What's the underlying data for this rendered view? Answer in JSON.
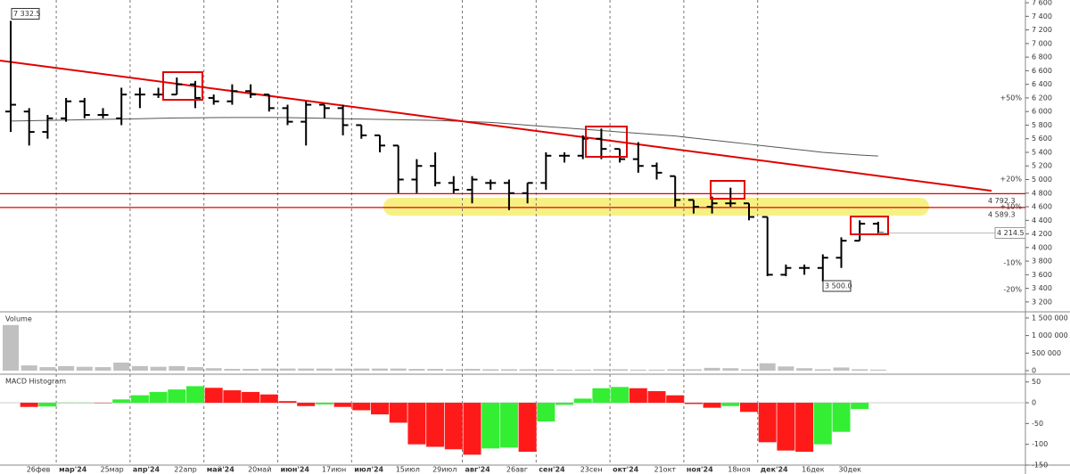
{
  "chart_data": [
    {
      "type": "ohlc",
      "categories": [
        null,
        "26фев",
        null,
        "мар'24",
        null,
        "25мар",
        null,
        "апр'24",
        null,
        "22апр",
        null,
        "май'24",
        null,
        "20май",
        null,
        "июн'24",
        null,
        "17июн",
        null,
        "июл'24",
        null,
        "15июл",
        null,
        "29июл",
        null,
        "авг'24",
        null,
        "26авг",
        null,
        "сен'24",
        null,
        "23сен",
        null,
        "окт'24",
        null,
        "21окт",
        null,
        "ноя'24",
        null,
        "18ноя",
        null,
        "дек'24",
        null,
        "16дек",
        null,
        "30дек",
        null,
        null
      ],
      "open": [
        6000,
        6000,
        5700,
        5900,
        6150,
        5950,
        5900,
        6250,
        6250,
        6250,
        6400,
        6200,
        6150,
        6300,
        6250,
        6050,
        5850,
        6100,
        6050,
        5800,
        5650,
        5500,
        5000,
        5200,
        4950,
        4850,
        4950,
        4950,
        4800,
        4950,
        5350,
        5350,
        5600,
        5450,
        5300,
        5200,
        5050,
        4700,
        4600,
        4650,
        4650,
        4450,
        3600,
        3700,
        3700,
        3850,
        4100,
        4350
      ],
      "high": [
        7332.5,
        6050,
        5950,
        6200,
        6200,
        6050,
        6350,
        6350,
        6350,
        6500,
        6450,
        6250,
        6400,
        6400,
        6250,
        6100,
        6150,
        6100,
        6100,
        5800,
        5650,
        5500,
        5300,
        5400,
        5050,
        5050,
        5000,
        5000,
        4950,
        5400,
        5400,
        5650,
        5750,
        5450,
        5550,
        5250,
        5050,
        4700,
        4750,
        4880,
        4650,
        4450,
        3750,
        3750,
        3900,
        4150,
        4400,
        4380
      ],
      "low": [
        5700,
        5500,
        5600,
        5850,
        5900,
        5900,
        5800,
        6050,
        6200,
        6250,
        6050,
        6100,
        6100,
        6200,
        6000,
        5800,
        5500,
        5900,
        5650,
        5600,
        5400,
        4800,
        4800,
        4900,
        4800,
        4650,
        4850,
        4550,
        4650,
        4850,
        5250,
        5300,
        5300,
        5250,
        5100,
        5000,
        4600,
        4500,
        4500,
        4600,
        4400,
        3580,
        3580,
        3600,
        3500,
        3700,
        4100,
        4200
      ],
      "close": [
        6100,
        5700,
        5900,
        6150,
        5950,
        5950,
        6250,
        6250,
        6250,
        6400,
        6200,
        6150,
        6300,
        6250,
        6050,
        5850,
        6100,
        6050,
        5800,
        5650,
        5500,
        5000,
        5200,
        4950,
        4850,
        5000,
        4950,
        4800,
        4950,
        5350,
        5350,
        5600,
        5450,
        5300,
        5200,
        5100,
        4700,
        4600,
        4650,
        4650,
        4450,
        3600,
        3700,
        3700,
        3850,
        4100,
        4350,
        4214.5
      ],
      "bar_color": "#000000",
      "moving_average": {
        "color": "#555555",
        "values": [
          5860,
          5865,
          5870,
          5875,
          5880,
          5885,
          5890,
          5895,
          5900,
          5905,
          5908,
          5910,
          5912,
          5912,
          5912,
          5910,
          5905,
          5900,
          5895,
          5890,
          5885,
          5880,
          5875,
          5870,
          5860,
          5850,
          5840,
          5820,
          5800,
          5780,
          5760,
          5740,
          5720,
          5700,
          5680,
          5660,
          5640,
          5610,
          5580,
          5550,
          5520,
          5490,
          5460,
          5430,
          5400,
          5380,
          5360,
          5345
        ]
      },
      "trendline": {
        "color": "#e00000",
        "values": [
          6750,
          4835
        ]
      },
      "levels": [
        {
          "value": 4792.3,
          "label": "4 792.3",
          "color": "#e0a000"
        },
        {
          "value": 4589.3,
          "label": "4 589.3",
          "color": "#e00000"
        }
      ],
      "level_line_color": "#e00000",
      "last_price": {
        "value": 4214.5,
        "label": "4 214.5"
      },
      "annotations": [
        {
          "value": 7332.5,
          "label": "7 332.5"
        },
        {
          "value": 3500,
          "label": "3 500.0"
        }
      ],
      "percent_marks": [
        {
          "value": 6199,
          "label": "+50%",
          "color": "#3a9a3a"
        },
        {
          "value": 5007,
          "label": "+20%",
          "color": "#3a9a3a"
        },
        {
          "value": 4601,
          "label": "+10%",
          "color": "#3a9a3a"
        },
        {
          "value": 3775,
          "label": "-10%",
          "color": "#e00000"
        },
        {
          "value": 3382,
          "label": "-20%",
          "color": "#e00000"
        }
      ],
      "ylim": [
        3120,
        7640
      ],
      "yticks": [
        {
          "value": 7600,
          "label": "7 600"
        },
        {
          "value": 7400,
          "label": "7 400"
        },
        {
          "value": 7200,
          "label": "7 200"
        },
        {
          "value": 7000,
          "label": "7 000"
        },
        {
          "value": 6800,
          "label": "6 800"
        },
        {
          "value": 6600,
          "label": "6 600"
        },
        {
          "value": 6400,
          "label": "6 400"
        },
        {
          "value": 6200,
          "label": "6 200"
        },
        {
          "value": 6000,
          "label": "6 000"
        },
        {
          "value": 5800,
          "label": "5 800"
        },
        {
          "value": 5600,
          "label": "5 600"
        },
        {
          "value": 5400,
          "label": "5 400"
        },
        {
          "value": 5200,
          "label": "5 200"
        },
        {
          "value": 5000,
          "label": "5 000"
        },
        {
          "value": 4800,
          "label": "4 800"
        },
        {
          "value": 4600,
          "label": "4 600"
        },
        {
          "value": 4400,
          "label": "4 400"
        },
        {
          "value": 4200,
          "label": "4 200"
        },
        {
          "value": 4000,
          "label": "4 000"
        },
        {
          "value": 3800,
          "label": "3 800"
        },
        {
          "value": 3600,
          "label": "3 600"
        },
        {
          "value": 3400,
          "label": "3 400"
        },
        {
          "value": 3200,
          "label": "3 200"
        }
      ],
      "grid": true
    },
    {
      "type": "bar",
      "title": "Volume",
      "color": "#c0c0c0",
      "values": [
        1300000,
        150000,
        100000,
        130000,
        110000,
        100000,
        230000,
        130000,
        110000,
        130000,
        100000,
        70000,
        50000,
        50000,
        60000,
        60000,
        60000,
        60000,
        60000,
        60000,
        60000,
        60000,
        50000,
        50000,
        40000,
        50000,
        40000,
        40000,
        40000,
        40000,
        30000,
        30000,
        40000,
        40000,
        30000,
        30000,
        40000,
        40000,
        80000,
        70000,
        40000,
        210000,
        120000,
        70000,
        40000,
        90000,
        40000,
        30000
      ],
      "ylim": [
        0,
        1650000
      ],
      "yticks": [
        {
          "value": 1500000,
          "label": "1 500 000"
        },
        {
          "value": 1000000,
          "label": "1 000 000"
        },
        {
          "value": 500000,
          "label": "500 000"
        },
        0
      ]
    },
    {
      "type": "histogram_macd",
      "title": "MACD Histogram",
      "up_color": "#33ee33",
      "down_color": "#ff1a1a",
      "values": [
        null,
        -10,
        -9,
        -1,
        0,
        -1,
        8,
        18,
        26,
        32,
        40,
        36,
        30,
        26,
        20,
        4,
        -8,
        -4,
        -10,
        -18,
        -28,
        -48,
        -100,
        -106,
        -112,
        -125,
        -110,
        -108,
        -118,
        -45,
        -5,
        10,
        35,
        38,
        35,
        28,
        18,
        -3,
        -12,
        -8,
        -22,
        -95,
        -115,
        -118,
        -100,
        -70,
        -15,
        null
      ],
      "ylim": [
        -150,
        58
      ],
      "yticks": [
        50,
        0,
        -50,
        -100,
        -150
      ]
    }
  ]
}
